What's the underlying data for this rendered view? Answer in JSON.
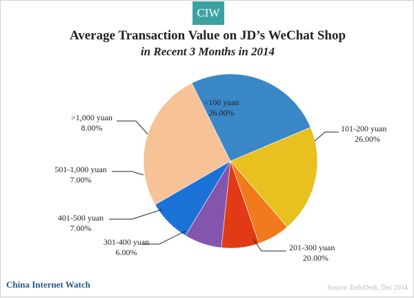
{
  "header": {
    "badge": "CIW"
  },
  "footer": {
    "brand": "China Internet Watch",
    "source": "Source: EnfoDesk, Dec 2014"
  },
  "chart_data": {
    "type": "pie",
    "title": "Average Transaction Value on JD’s WeChat Shop",
    "subtitle": "in Recent 3 Months in 2014",
    "slices": [
      {
        "label": "<100 yuan",
        "value": 26.0,
        "display": "26.00%",
        "color": "#f7c295"
      },
      {
        "label": "101-200 yuan",
        "value": 26.0,
        "display": "26.00%",
        "color": "#3a87c8"
      },
      {
        "label": "201-300 yuan",
        "value": 20.0,
        "display": "20.00%",
        "color": "#e8c020"
      },
      {
        "label": "301-400 yuan",
        "value": 6.0,
        "display": "6.00%",
        "color": "#f07a1c"
      },
      {
        "label": "401-500 yuan",
        "value": 7.0,
        "display": "7.00%",
        "color": "#e03a16"
      },
      {
        "label": "501-1,000 yuan",
        "value": 7.0,
        "display": "7.00%",
        "color": "#8455ad"
      },
      {
        "label": ">1,000 yuan",
        "value": 8.0,
        "display": "8.00%",
        "color": "#1a72d6"
      }
    ]
  }
}
